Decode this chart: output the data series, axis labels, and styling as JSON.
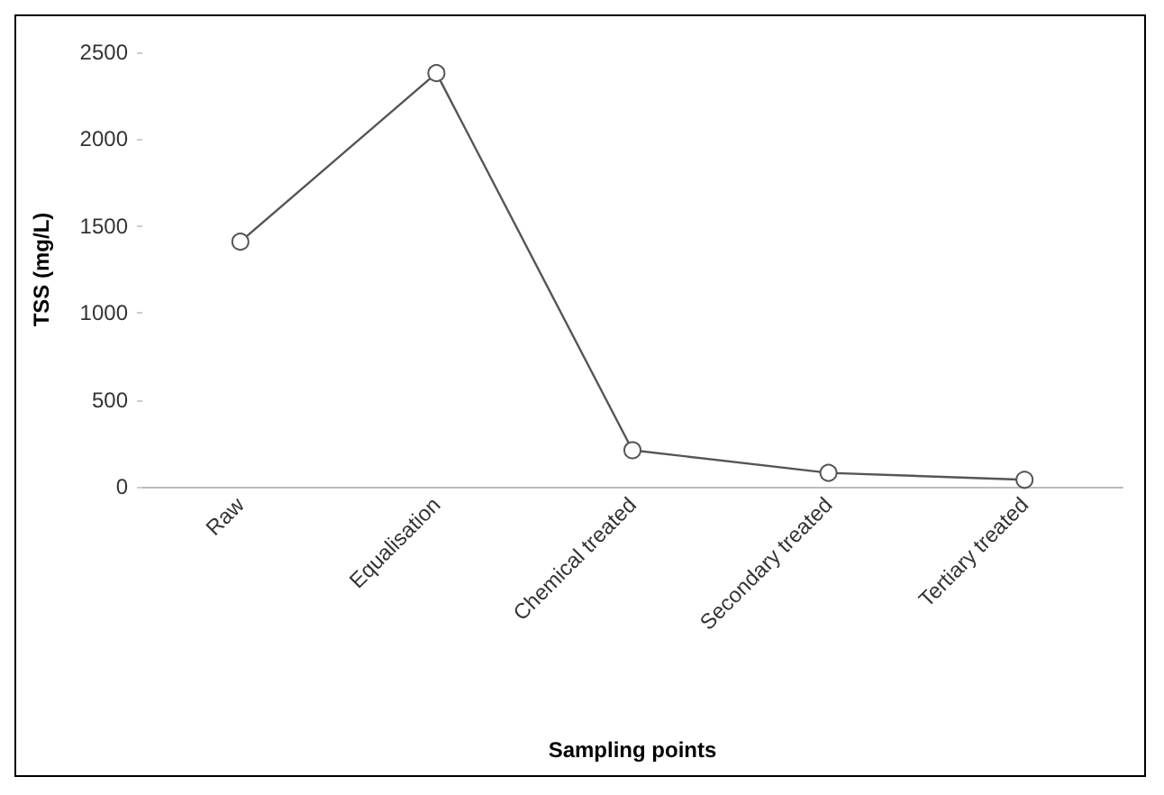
{
  "chart_data": {
    "type": "line",
    "xlabel": "Sampling points",
    "ylabel": "TSS (mg/L)",
    "categories": [
      "Raw",
      "Equalisation",
      "Chemical treated",
      "Secondary treated",
      "Tertiary treated"
    ],
    "series": [
      {
        "color": "#555555",
        "values": [
          1410,
          2380,
          210,
          80,
          40
        ]
      }
    ],
    "ylim": [
      0,
      2500
    ],
    "yticks": [
      0,
      500,
      1000,
      1500,
      2000,
      2500
    ],
    "grid": false,
    "marker": "circle",
    "line_style": "solid"
  }
}
